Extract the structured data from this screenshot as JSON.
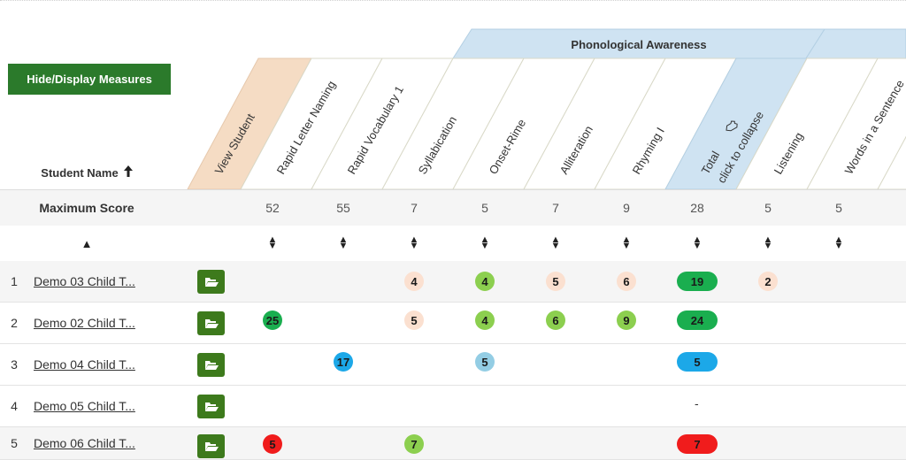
{
  "toolbar": {
    "hide_display_label": "Hide/Display Measures"
  },
  "table": {
    "student_name_header": "Student Name",
    "group_header": "Phonological Awareness",
    "columns": [
      {
        "label": "View Student"
      },
      {
        "label": "Rapid Letter Naming"
      },
      {
        "label": "Rapid Vocabulary 1"
      },
      {
        "label": "Syllabication"
      },
      {
        "label": "Onset-Rime"
      },
      {
        "label": "Alliteration"
      },
      {
        "label": "Rhyming I"
      },
      {
        "label": "Total",
        "sublabel": "click to collapse"
      },
      {
        "label": "Listening"
      },
      {
        "label": "Words in a Sentence"
      }
    ],
    "max_score_label": "Maximum Score",
    "max_scores": [
      "52",
      "55",
      "7",
      "5",
      "7",
      "9",
      "28",
      "5",
      "5"
    ],
    "rows": [
      {
        "num": "1",
        "name": "Demo 03 Child T...",
        "scores": {
          "syll": "4",
          "onset": "4",
          "allit": "5",
          "rhym": "6",
          "total": "19",
          "listen": "2"
        }
      },
      {
        "num": "2",
        "name": "Demo 02 Child T...",
        "scores": {
          "rln": "25",
          "syll": "5",
          "onset": "4",
          "allit": "6",
          "rhym": "9",
          "total": "24"
        }
      },
      {
        "num": "3",
        "name": "Demo 04 Child T...",
        "scores": {
          "rv1": "17",
          "onset": "5",
          "total": "5"
        }
      },
      {
        "num": "4",
        "name": "Demo 05 Child T...",
        "scores": {
          "total": "-"
        }
      },
      {
        "num": "5",
        "name": "Demo 06 Child T...",
        "scores": {
          "rln": "5",
          "syll": "7",
          "total": "7"
        }
      }
    ]
  },
  "colors": {
    "button_green": "#2b7a2b",
    "folder_green": "#3d7a1c",
    "view_student_header": "#f5dcc4",
    "total_header": "#cfe3f2",
    "group_header": "#cfe3f2",
    "score_peach": "#fbe0d0",
    "score_light_green": "#8ccf4f",
    "score_green": "#1aae4f",
    "score_blue": "#1ca8e8",
    "score_light_blue": "#93cde4",
    "score_red": "#f01c1c"
  },
  "icons": [
    "arrow-up-icon",
    "sort-updown-icon",
    "sort-ascending-icon",
    "folder-open-icon",
    "collapse-hand-icon"
  ]
}
